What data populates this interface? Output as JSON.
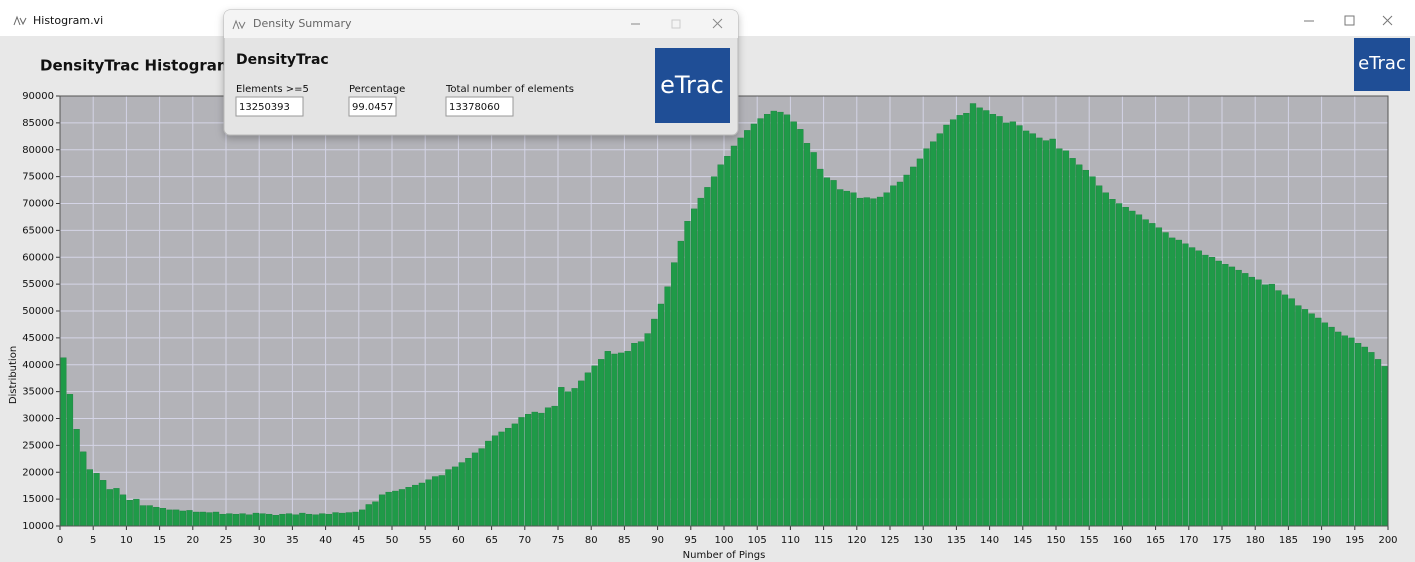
{
  "main_window": {
    "title": "Histogram.vi",
    "heading": "DensityTrac Histogram",
    "logo": "eTrac"
  },
  "dialog": {
    "title": "Density Summary",
    "heading": "DensityTrac",
    "logo": "eTrac",
    "fields": [
      {
        "label": "Elements >=5",
        "value": 13250393
      },
      {
        "label": "Percentage",
        "value": 99.0457
      },
      {
        "label": "Total number of elements",
        "value": 13378060
      }
    ]
  },
  "chart_data": {
    "type": "histogram",
    "xlabel": "Number of Pings",
    "ylabel": "Distribution",
    "color": "#1f9a48",
    "bins": [
      0,
      1,
      2,
      3,
      4,
      5,
      6,
      7,
      8,
      9,
      10,
      11,
      12,
      13,
      14,
      15,
      16,
      17,
      18,
      19,
      20,
      21,
      22,
      23,
      24,
      25,
      26,
      27,
      28,
      29,
      30,
      31,
      32,
      33,
      34,
      35,
      36,
      37,
      38,
      39,
      40,
      41,
      42,
      43,
      44,
      45,
      46,
      47,
      48,
      49,
      50,
      51,
      52,
      53,
      54,
      55,
      56,
      57,
      58,
      59,
      60,
      61,
      62,
      63,
      64,
      65,
      66,
      67,
      68,
      69,
      70,
      71,
      72,
      73,
      74,
      75,
      76,
      77,
      78,
      79,
      80,
      81,
      82,
      83,
      84,
      85,
      86,
      87,
      88,
      89,
      90,
      91,
      92,
      93,
      94,
      95,
      96,
      97,
      98,
      99,
      100,
      101,
      102,
      103,
      104,
      105,
      106,
      107,
      108,
      109,
      110,
      111,
      112,
      113,
      114,
      115,
      116,
      117,
      118,
      119,
      120,
      121,
      122,
      123,
      124,
      125,
      126,
      127,
      128,
      129,
      130,
      131,
      132,
      133,
      134,
      135,
      136,
      137,
      138,
      139,
      140,
      141,
      142,
      143,
      144,
      145,
      146,
      147,
      148,
      149,
      150,
      151,
      152,
      153,
      154,
      155,
      156,
      157,
      158,
      159,
      160,
      161,
      162,
      163,
      164,
      165,
      166,
      167,
      168,
      169,
      170,
      171,
      172,
      173,
      174,
      175,
      176,
      177,
      178,
      179,
      180,
      181,
      182,
      183,
      184,
      185,
      186,
      187,
      188,
      189,
      190,
      191,
      192,
      193,
      194,
      195,
      196,
      197,
      198,
      199,
      200
    ],
    "values": [
      41300,
      34500,
      28000,
      23800,
      20500,
      19800,
      18500,
      16800,
      17000,
      15800,
      14800,
      15000,
      13800,
      13800,
      13500,
      13300,
      13000,
      13000,
      12800,
      12900,
      12600,
      12600,
      12500,
      12600,
      12200,
      12300,
      12200,
      12300,
      12100,
      12400,
      12300,
      12200,
      12000,
      12200,
      12300,
      12100,
      12400,
      12200,
      12100,
      12300,
      12200,
      12500,
      12400,
      12500,
      12600,
      13000,
      14000,
      14500,
      15800,
      16300,
      16500,
      16800,
      17200,
      17600,
      18000,
      18600,
      19200,
      19400,
      20500,
      21000,
      21800,
      22600,
      23600,
      24400,
      25800,
      26800,
      27500,
      28200,
      29000,
      30200,
      30800,
      31200,
      31000,
      32000,
      32300,
      35800,
      35000,
      35600,
      37000,
      38500,
      39800,
      41000,
      42500,
      42000,
      42200,
      42500,
      44000,
      44300,
      45800,
      48500,
      51300,
      54500,
      59000,
      63000,
      66700,
      69000,
      71000,
      73000,
      75000,
      77200,
      78800,
      80700,
      82200,
      83600,
      84800,
      85800,
      86600,
      87200,
      87000,
      86500,
      85200,
      83800,
      81200,
      79500,
      76400,
      74800,
      74300,
      72600,
      72300,
      72000,
      71000,
      71100,
      70900,
      71200,
      72000,
      73300,
      74000,
      75300,
      76800,
      78300,
      80200,
      81500,
      83000,
      84600,
      85600,
      86400,
      86800,
      88600,
      87800,
      87300,
      86600,
      86200,
      85000,
      85200,
      84500,
      83500,
      83000,
      82200,
      81700,
      82000,
      80200,
      79800,
      78400,
      77200,
      76200,
      75000,
      73300,
      72000,
      70800,
      70000,
      69300,
      68600,
      67900,
      67000,
      66300,
      65500,
      64600,
      63600,
      63200,
      62500,
      61800,
      61200,
      60400,
      60000,
      59300,
      58700,
      58200,
      57600,
      57000,
      56300,
      55800,
      54900,
      55000,
      53800,
      53000,
      52300,
      51000,
      50300,
      49500,
      48700,
      47800,
      47000,
      46100,
      45400,
      45000,
      44000,
      43300,
      42300,
      41000,
      39700
    ],
    "xlim": [
      0,
      200
    ],
    "xticks": [
      0,
      5,
      10,
      15,
      20,
      25,
      30,
      35,
      40,
      45,
      50,
      55,
      60,
      65,
      70,
      75,
      80,
      85,
      90,
      95,
      100,
      105,
      110,
      115,
      120,
      125,
      130,
      135,
      140,
      145,
      150,
      155,
      160,
      165,
      170,
      175,
      180,
      185,
      190,
      195,
      200
    ],
    "ylim": [
      10000,
      90000
    ],
    "yticks": [
      10000,
      15000,
      20000,
      25000,
      30000,
      35000,
      40000,
      45000,
      50000,
      55000,
      60000,
      65000,
      70000,
      75000,
      80000,
      85000,
      90000
    ],
    "grid": true
  }
}
